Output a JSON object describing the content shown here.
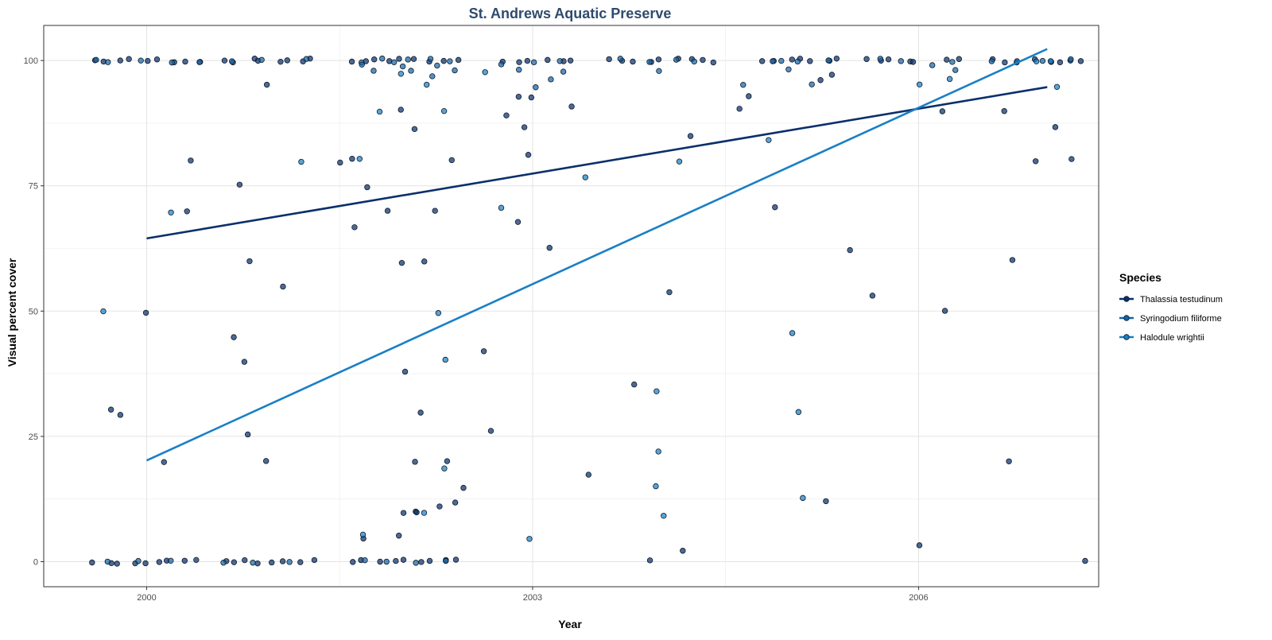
{
  "chart_data": {
    "type": "scatter",
    "title": "St. Andrews Aquatic Preserve",
    "xlabel": "Year",
    "ylabel": "Visual percent cover",
    "xlim": [
      1999.2,
      2007.4
    ],
    "ylim": [
      -5,
      107
    ],
    "x_ticks": [
      2000,
      2003,
      2006
    ],
    "y_ticks": [
      0,
      25,
      50,
      75,
      100
    ],
    "grid": true,
    "legend": {
      "title": "Species",
      "position": "right"
    },
    "series": [
      {
        "name": "Thalassia testudinum",
        "color": "#0a2f6b",
        "trend": {
          "x": [
            2000.0,
            2007.0
          ],
          "y": [
            64.5,
            94.7
          ]
        },
        "points": [
          [
            1999.6,
            100
          ],
          [
            1999.7,
            100
          ],
          [
            1999.8,
            100
          ],
          [
            1999.9,
            100
          ],
          [
            2000.0,
            100
          ],
          [
            2000.1,
            100
          ],
          [
            2000.2,
            100
          ],
          [
            2000.3,
            100
          ],
          [
            2000.4,
            100
          ],
          [
            2000.6,
            100
          ],
          [
            2000.7,
            100
          ],
          [
            2000.8,
            100
          ],
          [
            2000.9,
            100
          ],
          [
            2001.0,
            100
          ],
          [
            2001.1,
            100
          ],
          [
            2001.2,
            100
          ],
          [
            2001.3,
            100
          ],
          [
            2001.6,
            100
          ],
          [
            2001.7,
            100
          ],
          [
            2001.8,
            100
          ],
          [
            2001.9,
            100
          ],
          [
            2002.0,
            100
          ],
          [
            2002.1,
            100
          ],
          [
            2002.2,
            100
          ],
          [
            2002.3,
            100
          ],
          [
            2002.4,
            100
          ],
          [
            2002.8,
            100
          ],
          [
            2002.9,
            100
          ],
          [
            2003.0,
            100
          ],
          [
            2003.1,
            100
          ],
          [
            2003.2,
            100
          ],
          [
            2003.3,
            100
          ],
          [
            2003.6,
            100
          ],
          [
            2003.7,
            100
          ],
          [
            2003.8,
            100
          ],
          [
            2003.9,
            100
          ],
          [
            2004.0,
            100
          ],
          [
            2004.1,
            100
          ],
          [
            2004.2,
            100
          ],
          [
            2004.3,
            100
          ],
          [
            2004.4,
            100
          ],
          [
            2004.8,
            100
          ],
          [
            2004.9,
            100
          ],
          [
            2005.0,
            100
          ],
          [
            2005.1,
            100
          ],
          [
            2005.2,
            100
          ],
          [
            2005.3,
            100
          ],
          [
            2005.4,
            100
          ],
          [
            2005.6,
            100
          ],
          [
            2005.7,
            100
          ],
          [
            2005.8,
            100
          ],
          [
            2005.9,
            100
          ],
          [
            2006.0,
            100
          ],
          [
            2006.2,
            100
          ],
          [
            2006.3,
            100
          ],
          [
            2006.6,
            100
          ],
          [
            2006.7,
            100
          ],
          [
            2006.8,
            100
          ],
          [
            2006.9,
            100
          ],
          [
            2007.0,
            100
          ],
          [
            2007.1,
            100
          ],
          [
            2007.2,
            100
          ],
          [
            2007.3,
            100
          ],
          [
            1999.6,
            0
          ],
          [
            1999.7,
            0
          ],
          [
            1999.8,
            0
          ],
          [
            1999.9,
            0
          ],
          [
            2000.0,
            0
          ],
          [
            2000.1,
            0
          ],
          [
            2000.2,
            0
          ],
          [
            2000.3,
            0
          ],
          [
            2000.4,
            0
          ],
          [
            2000.6,
            0
          ],
          [
            2000.7,
            0
          ],
          [
            2000.8,
            0
          ],
          [
            2000.9,
            0
          ],
          [
            2001.0,
            0
          ],
          [
            2001.1,
            0
          ],
          [
            2001.2,
            0
          ],
          [
            2001.3,
            0
          ],
          [
            2001.6,
            0
          ],
          [
            2001.7,
            0
          ],
          [
            2001.8,
            0
          ],
          [
            2001.9,
            0
          ],
          [
            2002.0,
            0
          ],
          [
            2002.1,
            0
          ],
          [
            2002.2,
            0
          ],
          [
            2002.3,
            0
          ],
          [
            2002.4,
            0
          ],
          [
            2003.9,
            0
          ],
          [
            2007.3,
            0.5
          ],
          [
            2000.3,
            80
          ],
          [
            2000.3,
            70
          ],
          [
            2000.7,
            75
          ],
          [
            2000.8,
            60
          ],
          [
            2000.9,
            95
          ],
          [
            2001.1,
            55
          ],
          [
            2001.6,
            80
          ],
          [
            2001.7,
            75
          ],
          [
            2001.6,
            67
          ],
          [
            2001.9,
            70
          ],
          [
            2002.0,
            60
          ],
          [
            2002.2,
            70
          ],
          [
            2002.2,
            60
          ],
          [
            2002.4,
            80
          ],
          [
            2002.0,
            90
          ],
          [
            2002.1,
            86
          ],
          [
            2002.0,
            38
          ],
          [
            2002.1,
            30
          ],
          [
            2002.1,
            20
          ],
          [
            2002.3,
            20
          ],
          [
            2002.5,
            15
          ],
          [
            2002.4,
            12
          ],
          [
            2002.1,
            10
          ],
          [
            2001.7,
            5
          ],
          [
            2002.0,
            5
          ],
          [
            2002.8,
            89
          ],
          [
            2002.9,
            87
          ],
          [
            2002.9,
            93
          ],
          [
            2003.0,
            93
          ],
          [
            2003.0,
            81
          ],
          [
            2003.1,
            63
          ],
          [
            2003.3,
            91
          ],
          [
            2002.9,
            68
          ],
          [
            2002.6,
            42
          ],
          [
            2002.7,
            26
          ],
          [
            2003.4,
            17
          ],
          [
            2003.8,
            35
          ],
          [
            2004.2,
            85
          ],
          [
            2004.1,
            54
          ],
          [
            2004.2,
            2
          ],
          [
            2004.6,
            90
          ],
          [
            2004.7,
            93
          ],
          [
            2004.9,
            71
          ],
          [
            2005.2,
            96
          ],
          [
            2005.3,
            97
          ],
          [
            2005.3,
            12
          ],
          [
            2005.5,
            62
          ],
          [
            2005.6,
            53
          ],
          [
            2006.2,
            90
          ],
          [
            2006.2,
            50
          ],
          [
            2006.7,
            90
          ],
          [
            2006.7,
            60
          ],
          [
            2006.7,
            20
          ],
          [
            2006.9,
            80
          ],
          [
            2007.1,
            87
          ],
          [
            2007.2,
            80
          ],
          [
            1999.7,
            30
          ],
          [
            1999.8,
            29
          ],
          [
            2000.0,
            50
          ],
          [
            2000.1,
            20
          ],
          [
            2000.7,
            45
          ],
          [
            2000.8,
            40
          ],
          [
            2000.8,
            25
          ],
          [
            2000.9,
            20
          ],
          [
            2001.5,
            80
          ],
          [
            2002.0,
            10
          ],
          [
            2002.1,
            10
          ],
          [
            2002.3,
            11
          ],
          [
            2006.0,
            3.5
          ]
        ]
      },
      {
        "name": "Syringodium filiforme",
        "color": "#1565a8",
        "points": [
          [
            1999.6,
            100
          ],
          [
            1999.7,
            100
          ],
          [
            2000.0,
            100
          ],
          [
            2000.2,
            100
          ],
          [
            2000.4,
            100
          ],
          [
            2000.7,
            100
          ],
          [
            2000.9,
            100
          ],
          [
            2001.2,
            100
          ],
          [
            2001.7,
            100
          ],
          [
            2001.8,
            100
          ],
          [
            2002.0,
            100
          ],
          [
            2002.2,
            100
          ],
          [
            2002.4,
            100
          ],
          [
            2003.0,
            100
          ],
          [
            2003.2,
            100
          ],
          [
            2003.7,
            100
          ],
          [
            2003.9,
            100
          ],
          [
            2004.1,
            100
          ],
          [
            2004.3,
            100
          ],
          [
            2004.9,
            100
          ],
          [
            2005.1,
            100
          ],
          [
            2005.3,
            100
          ],
          [
            2005.7,
            100
          ],
          [
            2005.9,
            100
          ],
          [
            2006.3,
            100
          ],
          [
            2006.6,
            100
          ],
          [
            2006.8,
            100
          ],
          [
            2007.0,
            100
          ],
          [
            2007.2,
            100
          ],
          [
            1999.7,
            0
          ],
          [
            1999.9,
            0
          ],
          [
            2000.2,
            0
          ],
          [
            2000.6,
            0
          ],
          [
            2000.8,
            0
          ],
          [
            2001.1,
            0
          ],
          [
            2001.7,
            0
          ],
          [
            2001.9,
            0
          ],
          [
            2002.1,
            0
          ],
          [
            2002.3,
            0
          ],
          [
            2001.7,
            99
          ],
          [
            2001.8,
            98
          ],
          [
            2001.9,
            100
          ],
          [
            2002.0,
            99
          ],
          [
            2002.1,
            98
          ],
          [
            2002.2,
            97
          ],
          [
            2002.3,
            99
          ],
          [
            2002.4,
            98
          ],
          [
            2002.8,
            99
          ],
          [
            2002.9,
            98
          ],
          [
            2003.0,
            95
          ],
          [
            2003.1,
            96
          ],
          [
            2003.2,
            98
          ],
          [
            2004.0,
            98
          ],
          [
            2004.6,
            95
          ],
          [
            2004.9,
            100
          ],
          [
            2005.0,
            98
          ],
          [
            2005.2,
            95
          ],
          [
            2006.1,
            99
          ],
          [
            2006.3,
            98
          ]
        ]
      },
      {
        "name": "Halodule wrightii",
        "color": "#1a7fc6",
        "trend": {
          "x": [
            2000.0,
            2007.0
          ],
          "y": [
            20.2,
            102.3
          ]
        },
        "points": [
          [
            1999.7,
            50
          ],
          [
            2000.2,
            70
          ],
          [
            2001.2,
            80
          ],
          [
            2001.7,
            80
          ],
          [
            2001.8,
            90
          ],
          [
            2002.0,
            97
          ],
          [
            2002.2,
            95
          ],
          [
            2002.3,
            90
          ],
          [
            2002.6,
            98
          ],
          [
            2002.3,
            50
          ],
          [
            2002.3,
            40
          ],
          [
            2002.3,
            19
          ],
          [
            2002.2,
            10
          ],
          [
            2001.7,
            5
          ],
          [
            2002.8,
            71
          ],
          [
            2003.0,
            4.5
          ],
          [
            2003.4,
            77
          ],
          [
            2004.0,
            22
          ],
          [
            2004.0,
            34
          ],
          [
            2004.0,
            15
          ],
          [
            2004.0,
            9
          ],
          [
            2004.1,
            80
          ],
          [
            2004.8,
            84
          ],
          [
            2005.0,
            46
          ],
          [
            2005.1,
            30
          ],
          [
            2005.1,
            12.5
          ],
          [
            2006.0,
            95
          ],
          [
            2006.2,
            96
          ],
          [
            2007.1,
            95
          ],
          [
            2006.9,
            100
          ],
          [
            2007.0,
            100
          ]
        ]
      }
    ]
  }
}
